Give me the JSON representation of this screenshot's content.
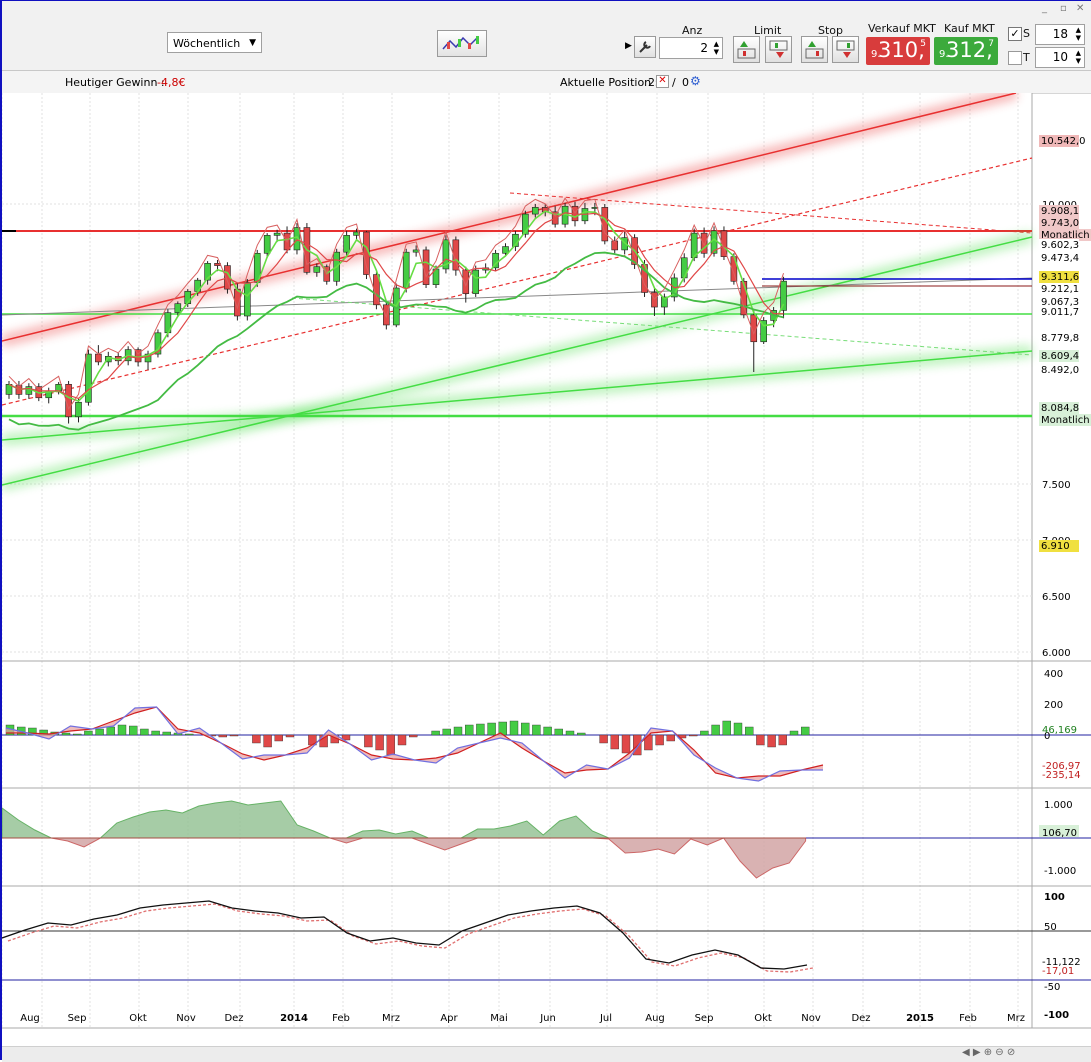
{
  "window": {
    "minimize": "_",
    "restore": "▫",
    "close": "✕"
  },
  "toolbar": {
    "interval": "Wöchentlich",
    "anz_label": "Anz",
    "anz_value": "2",
    "limit_label": "Limit",
    "stop_label": "Stop",
    "sell_label": "Verkauf MKT",
    "buy_label": "Kauf MKT",
    "sell_price": {
      "pre": "9.",
      "big": "310,",
      "sup": "5"
    },
    "buy_price": {
      "pre": "9.",
      "big": "312,",
      "sup": "7"
    },
    "s_label": "S",
    "s_value": "18",
    "t_label": "T",
    "t_value": "10"
  },
  "infobar": {
    "gain_label": "Heutiger Gewinn :",
    "gain_value": "-4,8€",
    "position_label": "Aktuelle Position :",
    "position_long": "2",
    "position_short": "0"
  },
  "colors": {
    "bull": "#44cc44",
    "bear": "#e04848",
    "sell_bg": "#d83c3c",
    "buy_bg": "#3caa3c",
    "blue_line": "#0000cc"
  },
  "chart_data": [
    {
      "type": "candlestick",
      "x_ticks": [
        "Aug",
        "Sep",
        "Okt",
        "Nov",
        "Dez",
        "2014",
        "Feb",
        "Mrz",
        "Apr",
        "Mai",
        "Jun",
        "Jul",
        "Aug",
        "Sep",
        "Okt",
        "Nov",
        "Dez",
        "2015",
        "Feb",
        "Mrz"
      ],
      "y_ticks": [
        "10.000",
        "7.500",
        "7.000",
        "6.500",
        "6.000"
      ],
      "ylim": [
        5950,
        10900
      ],
      "price_tags": [
        {
          "text": "10.542,0",
          "bg": "#f0b8b8"
        },
        {
          "text": "9.908,1",
          "bg": "#f0c8c8"
        },
        {
          "text": "9.743,0",
          "bg": "#f0c8c8"
        },
        {
          "text": "Monatlich",
          "bg": "#f0c8c8"
        },
        {
          "text": "9.602,3",
          "bg": "#ffffff"
        },
        {
          "text": "9.473,4",
          "bg": "#ffffff"
        },
        {
          "text": "9.311,6",
          "bg": "#f0e040"
        },
        {
          "text": "9.212,1",
          "bg": "#ffffff"
        },
        {
          "text": "9.067,3",
          "bg": "#ffffff"
        },
        {
          "text": "9.011,7",
          "bg": "#ffffff"
        },
        {
          "text": "8.779,8",
          "bg": "#ffffff"
        },
        {
          "text": "8.609,4",
          "bg": "#d8f0d8"
        },
        {
          "text": "8.492,0",
          "bg": "#ffffff"
        },
        {
          "text": "8.084,8",
          "bg": "#d8f0d8"
        },
        {
          "text": "Monatlich",
          "bg": "#d8f0d8"
        },
        {
          "text": "6.910",
          "bg": "#f0e040"
        }
      ],
      "candles": [
        [
          8300,
          8390,
          8260,
          8420
        ],
        [
          8380,
          8300,
          8260,
          8420
        ],
        [
          8300,
          8370,
          8260,
          8400
        ],
        [
          8370,
          8270,
          8240,
          8400
        ],
        [
          8270,
          8330,
          8220,
          8360
        ],
        [
          8330,
          8390,
          8300,
          8410
        ],
        [
          8390,
          8100,
          8040,
          8420
        ],
        [
          8100,
          8230,
          8050,
          8260
        ],
        [
          8230,
          8660,
          8200,
          8700
        ],
        [
          8660,
          8590,
          8560,
          8740
        ],
        [
          8590,
          8640,
          8550,
          8680
        ],
        [
          8640,
          8600,
          8560,
          8670
        ],
        [
          8600,
          8700,
          8560,
          8730
        ],
        [
          8700,
          8590,
          8550,
          8720
        ],
        [
          8590,
          8660,
          8520,
          8690
        ],
        [
          8660,
          8850,
          8630,
          8880
        ],
        [
          8850,
          9030,
          8810,
          9060
        ],
        [
          9030,
          9110,
          8990,
          9130
        ],
        [
          9110,
          9220,
          9080,
          9240
        ],
        [
          9220,
          9320,
          9180,
          9340
        ],
        [
          9320,
          9470,
          9280,
          9490
        ],
        [
          9470,
          9450,
          9400,
          9500
        ],
        [
          9450,
          9240,
          9200,
          9480
        ],
        [
          9240,
          9000,
          8960,
          9290
        ],
        [
          9000,
          9300,
          8960,
          9330
        ],
        [
          9300,
          9560,
          9260,
          9590
        ],
        [
          9560,
          9720,
          9520,
          9740
        ],
        [
          9720,
          9740,
          9660,
          9770
        ],
        [
          9740,
          9590,
          9560,
          9800
        ],
        [
          9590,
          9790,
          9550,
          9830
        ],
        [
          9790,
          9390,
          9370,
          9830
        ],
        [
          9390,
          9440,
          9350,
          9470
        ],
        [
          9440,
          9310,
          9280,
          9460
        ],
        [
          9310,
          9570,
          9270,
          9600
        ],
        [
          9570,
          9720,
          9530,
          9760
        ],
        [
          9720,
          9750,
          9680,
          9780
        ],
        [
          9750,
          9370,
          9330,
          9760
        ],
        [
          9370,
          9100,
          9060,
          9390
        ],
        [
          9100,
          8920,
          8880,
          9130
        ],
        [
          8920,
          9250,
          8900,
          9290
        ],
        [
          9250,
          9570,
          9210,
          9600
        ],
        [
          9570,
          9590,
          9530,
          9630
        ],
        [
          9590,
          9280,
          9250,
          9620
        ],
        [
          9280,
          9420,
          9250,
          9450
        ],
        [
          9420,
          9680,
          9380,
          9720
        ],
        [
          9680,
          9410,
          9360,
          9710
        ],
        [
          9410,
          9200,
          9120,
          9440
        ],
        [
          9200,
          9410,
          9170,
          9450
        ],
        [
          9410,
          9430,
          9380,
          9470
        ],
        [
          9430,
          9560,
          9400,
          9590
        ],
        [
          9560,
          9620,
          9530,
          9650
        ],
        [
          9620,
          9730,
          9580,
          9760
        ],
        [
          9730,
          9910,
          9700,
          9940
        ],
        [
          9910,
          9970,
          9880,
          10000
        ],
        [
          9970,
          9930,
          9890,
          10000
        ],
        [
          9930,
          9820,
          9790,
          9980
        ],
        [
          9820,
          9980,
          9790,
          10010
        ],
        [
          9980,
          9850,
          9800,
          10020
        ],
        [
          9850,
          9960,
          9820,
          10010
        ],
        [
          9960,
          9970,
          9900,
          10010
        ],
        [
          9970,
          9670,
          9640,
          10000
        ],
        [
          9670,
          9590,
          9560,
          9710
        ],
        [
          9590,
          9700,
          9550,
          9750
        ],
        [
          9700,
          9460,
          9420,
          9730
        ],
        [
          9460,
          9210,
          9170,
          9500
        ],
        [
          9210,
          9080,
          9000,
          9250
        ],
        [
          9080,
          9170,
          9010,
          9200
        ],
        [
          9170,
          9340,
          9130,
          9380
        ],
        [
          9340,
          9520,
          9300,
          9560
        ],
        [
          9520,
          9740,
          9490,
          9780
        ],
        [
          9740,
          9560,
          9520,
          9790
        ],
        [
          9560,
          9760,
          9530,
          9800
        ],
        [
          9760,
          9530,
          9500,
          9800
        ],
        [
          9530,
          9310,
          9280,
          9560
        ],
        [
          9310,
          9010,
          8980,
          9340
        ],
        [
          9010,
          8770,
          8500,
          9050
        ],
        [
          8770,
          8960,
          8750,
          8990
        ],
        [
          8960,
          9050,
          8900,
          9080
        ],
        [
          9050,
          9311,
          8980,
          9350
        ]
      ]
    },
    {
      "type": "histogram",
      "y_ticks": [
        "400",
        "200",
        "0"
      ],
      "value_tags": [
        "46,169",
        "-206,97",
        "-235,14"
      ]
    },
    {
      "type": "area",
      "y_ticks": [
        "1.000",
        "-1.000"
      ],
      "value_tags": [
        "106,70"
      ]
    },
    {
      "type": "line",
      "y_ticks": [
        "100",
        "50",
        "-50",
        "-100"
      ],
      "value_tags": [
        "-11,122",
        "-17,01"
      ]
    }
  ]
}
